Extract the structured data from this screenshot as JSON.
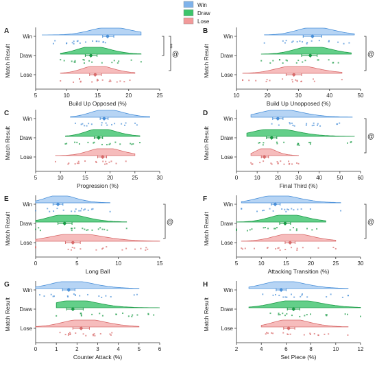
{
  "legend": {
    "placement": "top-center",
    "items": [
      {
        "label": "Win",
        "color": "#7fb2ea"
      },
      {
        "label": "Draw",
        "color": "#3cc46b"
      },
      {
        "label": "Lose",
        "color": "#f29a9a"
      }
    ]
  },
  "colors": {
    "win_line": "#4a90d9",
    "win_fill": "#a9cdf2",
    "draw_line": "#1a9b46",
    "draw_fill": "#48c774",
    "lose_line": "#d86b6b",
    "lose_fill": "#f4b0b0",
    "point": "#e58a8a"
  },
  "chart_data": [
    {
      "panel": "A",
      "type": "raincloud",
      "xlabel": "Build Up Opposed (%)",
      "ylabel": "Match Result",
      "categories": [
        "Win",
        "Draw",
        "Lose"
      ],
      "xlim": [
        5,
        25
      ],
      "xticks": [
        5,
        10,
        15,
        20,
        25
      ],
      "series": [
        {
          "name": "Win",
          "mean": 16.6,
          "ci": [
            15.8,
            17.6
          ],
          "range": [
            6,
            22
          ]
        },
        {
          "name": "Draw",
          "mean": 13.9,
          "ci": [
            13.0,
            14.9
          ],
          "range": [
            9,
            22
          ]
        },
        {
          "name": "Lose",
          "mean": 14.6,
          "ci": [
            13.7,
            15.6
          ],
          "range": [
            9,
            21
          ]
        }
      ],
      "annotations": [
        "**",
        "@"
      ]
    },
    {
      "panel": "B",
      "type": "raincloud",
      "xlabel": "Build Up Unopposed (%)",
      "ylabel": "Match Result",
      "categories": [
        "Win",
        "Draw",
        "Lose"
      ],
      "xlim": [
        10,
        50
      ],
      "xticks": [
        10,
        20,
        30,
        40,
        50
      ],
      "series": [
        {
          "name": "Win",
          "mean": 34.5,
          "ci": [
            31.5,
            37.5
          ],
          "range": [
            19,
            48
          ]
        },
        {
          "name": "Draw",
          "mean": 33.8,
          "ci": [
            31.0,
            36.0
          ],
          "range": [
            18,
            47
          ]
        },
        {
          "name": "Lose",
          "mean": 28.5,
          "ci": [
            26.0,
            31.0
          ],
          "range": [
            12,
            44
          ]
        }
      ],
      "annotations": [
        "@"
      ]
    },
    {
      "panel": "C",
      "type": "raincloud",
      "xlabel": "Progression (%)",
      "ylabel": "Match Result",
      "categories": [
        "Win",
        "Draw",
        "Lose"
      ],
      "xlim": [
        5,
        30
      ],
      "xticks": [
        5,
        10,
        15,
        20,
        25,
        30
      ],
      "series": [
        {
          "name": "Win",
          "mean": 18.8,
          "ci": [
            18.0,
            19.6
          ],
          "range": [
            12,
            28
          ]
        },
        {
          "name": "Draw",
          "mean": 17.7,
          "ci": [
            16.8,
            18.5
          ],
          "range": [
            11,
            26
          ]
        },
        {
          "name": "Lose",
          "mean": 18.5,
          "ci": [
            17.5,
            19.3
          ],
          "range": [
            9,
            25
          ]
        }
      ],
      "annotations": []
    },
    {
      "panel": "D",
      "type": "raincloud",
      "xlabel": "Final Third (%)",
      "ylabel": "Match Result",
      "categories": [
        "Win",
        "Draw",
        "Lose"
      ],
      "xlim": [
        0,
        60
      ],
      "xticks": [
        0,
        10,
        20,
        30,
        40,
        50,
        60
      ],
      "series": [
        {
          "name": "Win",
          "mean": 20.0,
          "ci": [
            17.5,
            22.5
          ],
          "range": [
            7,
            56
          ]
        },
        {
          "name": "Draw",
          "mean": 17.0,
          "ci": [
            14.5,
            19.5
          ],
          "range": [
            5,
            57
          ]
        },
        {
          "name": "Lose",
          "mean": 13.5,
          "ci": [
            12.0,
            15.5
          ],
          "range": [
            7,
            30
          ]
        }
      ],
      "annotations": [
        "@"
      ]
    },
    {
      "panel": "E",
      "type": "raincloud",
      "xlabel": "Long Ball",
      "ylabel": "Match Result",
      "categories": [
        "Win",
        "Draw",
        "Lose"
      ],
      "xlim": [
        0,
        15
      ],
      "xticks": [
        0,
        5,
        10,
        15
      ],
      "series": [
        {
          "name": "Win",
          "mean": 2.7,
          "ci": [
            2.1,
            3.3
          ],
          "range": [
            0,
            9
          ]
        },
        {
          "name": "Draw",
          "mean": 3.5,
          "ci": [
            2.7,
            4.4
          ],
          "range": [
            0,
            11
          ]
        },
        {
          "name": "Lose",
          "mean": 4.5,
          "ci": [
            3.6,
            5.4
          ],
          "range": [
            0,
            15
          ]
        }
      ],
      "annotations": [
        "@"
      ]
    },
    {
      "panel": "F",
      "type": "raincloud",
      "xlabel": "Attacking Transition (%)",
      "ylabel": "Match Result",
      "categories": [
        "Win",
        "Draw",
        "Lose"
      ],
      "xlim": [
        5,
        30
      ],
      "xticks": [
        5,
        10,
        15,
        20,
        25,
        30
      ],
      "series": [
        {
          "name": "Win",
          "mean": 12.8,
          "ci": [
            12.0,
            13.8
          ],
          "range": [
            6,
            26
          ]
        },
        {
          "name": "Draw",
          "mean": 14.8,
          "ci": [
            13.7,
            15.9
          ],
          "range": [
            5,
            23
          ]
        },
        {
          "name": "Lose",
          "mean": 15.8,
          "ci": [
            14.8,
            16.8
          ],
          "range": [
            6,
            25
          ]
        }
      ],
      "annotations": [
        "@"
      ]
    },
    {
      "panel": "G",
      "type": "raincloud",
      "xlabel": "Counter Attack (%)",
      "ylabel": "Match Result",
      "categories": [
        "Win",
        "Draw",
        "Lose"
      ],
      "xlim": [
        0,
        6
      ],
      "xticks": [
        0,
        1,
        2,
        3,
        4,
        5,
        6
      ],
      "series": [
        {
          "name": "Win",
          "mean": 1.6,
          "ci": [
            1.3,
            1.9
          ],
          "range": [
            0,
            5
          ]
        },
        {
          "name": "Draw",
          "mean": 1.8,
          "ci": [
            1.5,
            2.3
          ],
          "range": [
            1,
            6
          ]
        },
        {
          "name": "Lose",
          "mean": 2.2,
          "ci": [
            1.8,
            2.6
          ],
          "range": [
            0,
            5
          ]
        }
      ],
      "annotations": []
    },
    {
      "panel": "H",
      "type": "raincloud",
      "xlabel": "Set Piece (%)",
      "ylabel": "Match Result",
      "categories": [
        "Win",
        "Draw",
        "Lose"
      ],
      "xlim": [
        2,
        12
      ],
      "xticks": [
        2,
        4,
        6,
        8,
        10,
        12
      ],
      "series": [
        {
          "name": "Win",
          "mean": 5.6,
          "ci": [
            5.2,
            6.0
          ],
          "range": [
            3,
            11
          ]
        },
        {
          "name": "Draw",
          "mean": 6.6,
          "ci": [
            6.1,
            7.1
          ],
          "range": [
            3,
            12
          ]
        },
        {
          "name": "Lose",
          "mean": 6.2,
          "ci": [
            5.8,
            6.7
          ],
          "range": [
            4,
            11
          ]
        }
      ],
      "annotations": []
    }
  ]
}
